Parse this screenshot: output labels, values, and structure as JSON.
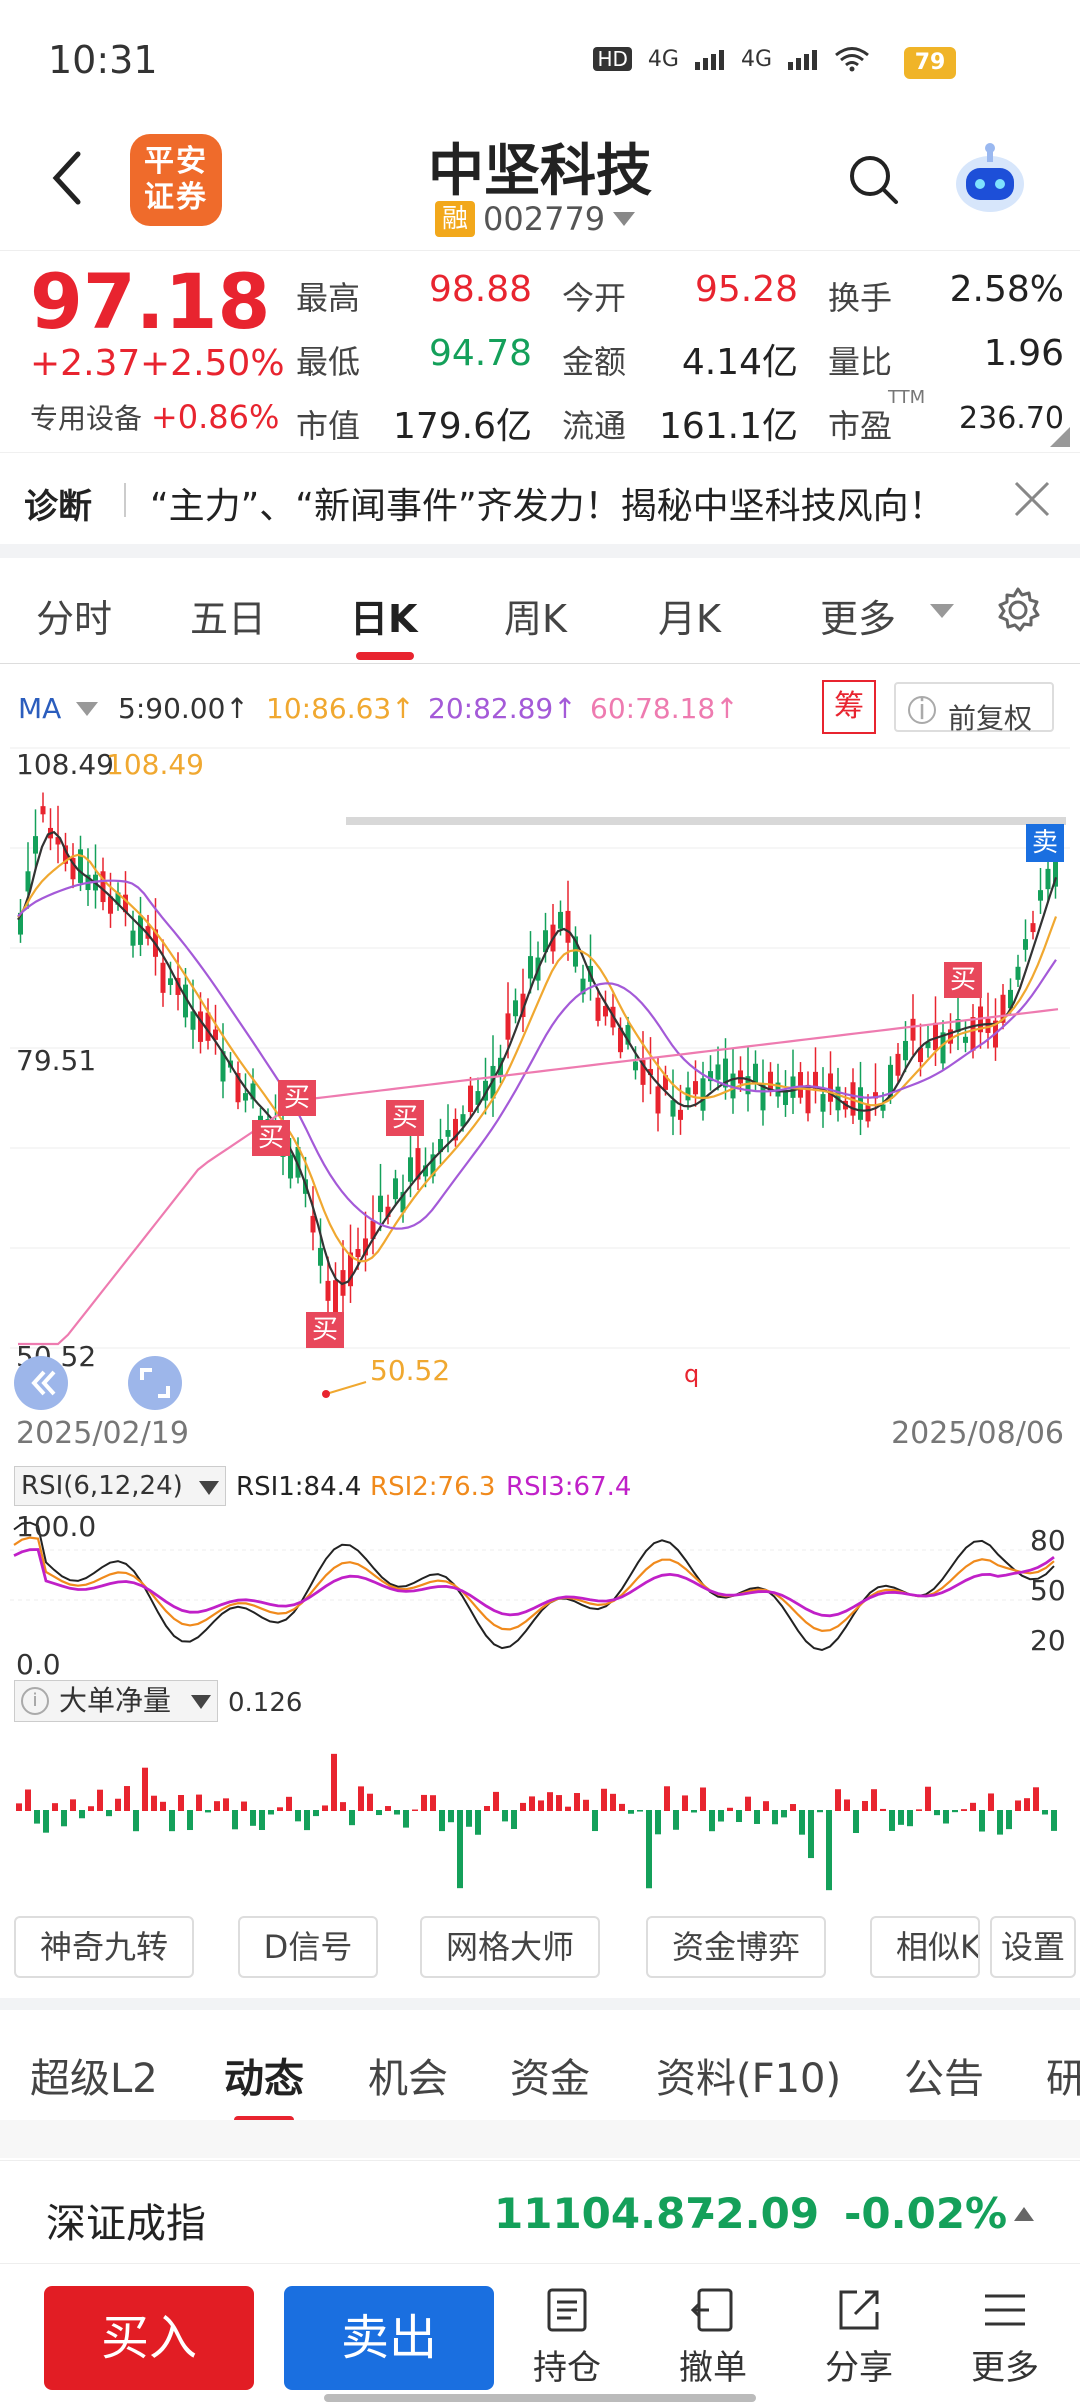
{
  "status": {
    "time": "10:31",
    "hd": "HD",
    "net1": "4G",
    "net2": "4G",
    "battery": "79"
  },
  "header": {
    "logo": "平安证券",
    "logo_line1": "平安",
    "logo_line2": "证券",
    "stock_name": "中坚科技",
    "rong": "融",
    "code": "002779"
  },
  "quote": {
    "price": "97.18",
    "change": "+2.37",
    "change_pct": "+2.50%",
    "sector_label": "专用设备",
    "sector_pct": "+0.86%",
    "high_label": "最高",
    "high": "98.88",
    "open_label": "今开",
    "open": "95.28",
    "turnover_label": "换手",
    "turnover": "2.58%",
    "low_label": "最低",
    "low": "94.78",
    "amount_label": "金额",
    "amount": "4.14亿",
    "vol_ratio_label": "量比",
    "vol_ratio": "1.96",
    "mktcap_label": "市值",
    "mktcap": "179.6亿",
    "float_label": "流通",
    "float": "161.1亿",
    "pe_label": "市盈",
    "pe_sup": "TTM",
    "pe": "236.70"
  },
  "news": {
    "tag": "诊断",
    "text": "“主力”、“新闻事件”齐发力！揭秘中坚科技风向！"
  },
  "ktabs": [
    "分时",
    "五日",
    "日K",
    "周K",
    "月K",
    "更多"
  ],
  "ma": {
    "label": "MA",
    "ma5": "5:90.00↑",
    "ma10": "10:86.63↑",
    "ma20": "20:82.89↑",
    "ma60": "60:78.18↑",
    "chou": "筹",
    "fq": "前复权",
    "colors": {
      "ma5": "#333333",
      "ma10": "#f0a830",
      "ma20": "#a45ad8",
      "ma60": "#ee7bb0"
    }
  },
  "kchart": {
    "high_label": "108.49",
    "high_marker": "108.49",
    "mid_label": "79.51",
    "low_label": "50.52",
    "low_marker": "50.52",
    "date_start": "2025/02/19",
    "date_end": "2025/08/06",
    "sell_badge": "卖",
    "buy_badge": "买",
    "q_mark": "q"
  },
  "rsi": {
    "label": "RSI(6,12,24)",
    "rsi1": "RSI1:84.4",
    "rsi2": "RSI2:76.3",
    "rsi3": "RSI3:67.4",
    "top": "100.0",
    "bottom": "0.0",
    "l80": "80",
    "l50": "50",
    "l20": "20"
  },
  "ddj": {
    "label": "大单净量",
    "value": "0.126"
  },
  "tools": [
    "神奇九转",
    "D信号",
    "网格大师",
    "资金博弈",
    "相似K",
    "设置"
  ],
  "btabs": [
    "超级L2",
    "动态",
    "机会",
    "资金",
    "资料(F10)",
    "公告",
    "研"
  ],
  "index": {
    "name": "深证成指",
    "value": "11104.87",
    "change": "-2.09",
    "pct": "-0.02%"
  },
  "bottom": {
    "buy": "买入",
    "sell": "卖出",
    "hold": "持仓",
    "cancel": "撤单",
    "share": "分享",
    "more": "更多"
  }
}
